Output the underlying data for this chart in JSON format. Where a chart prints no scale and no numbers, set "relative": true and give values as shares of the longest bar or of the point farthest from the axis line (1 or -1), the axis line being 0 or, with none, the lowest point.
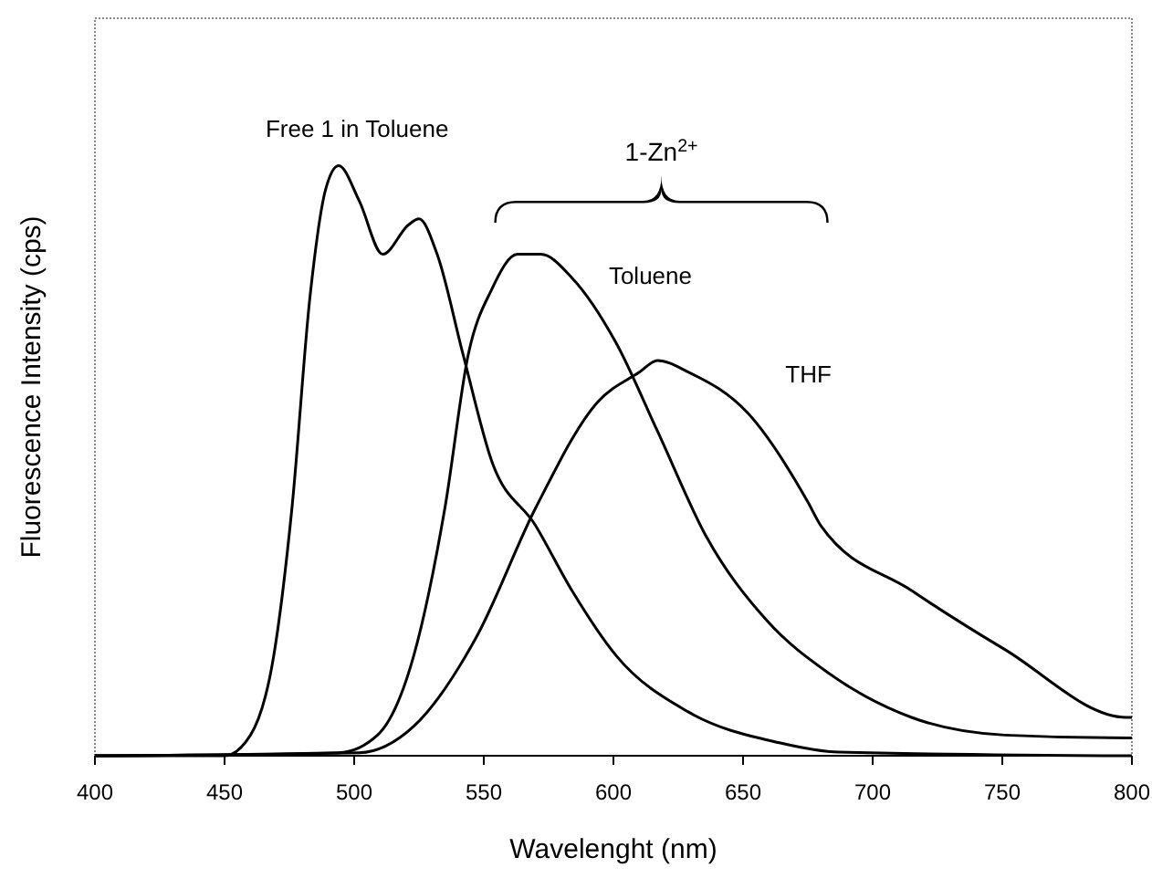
{
  "chart_data": {
    "type": "line",
    "relative": true,
    "xlabel": "Wavelenght (nm)",
    "ylabel": "Fluorescence Intensity (cps)",
    "xlim": [
      400,
      800
    ],
    "xticks": [
      400,
      450,
      500,
      550,
      600,
      650,
      700,
      750,
      800
    ],
    "grid": false,
    "line_style": "solid",
    "annotations": [
      "1-Zn$^{2+}$"
    ],
    "series": [
      {
        "name": "Free 1 in Toluene",
        "color": "#000000",
        "x": [
          400,
          450,
          460,
          469,
          476,
          483,
          489,
          494,
          502,
          511,
          521,
          525,
          532,
          542,
          553,
          570,
          584,
          601,
          629,
          664,
          687,
          800
        ],
        "values": [
          0,
          0,
          0.035,
          0.17,
          0.42,
          0.78,
          0.96,
          1,
          0.94,
          0.85,
          0.9,
          0.91,
          0.85,
          0.68,
          0.5,
          0.39,
          0.28,
          0.17,
          0.074,
          0.022,
          0.006,
          0
        ]
      },
      {
        "name": "Toluene",
        "color": "#000000",
        "x": [
          400,
          494,
          509,
          523,
          535,
          544,
          553,
          563,
          572,
          584,
          601,
          617,
          636,
          659,
          683,
          715,
          751,
          798,
          800
        ],
        "values": [
          0,
          0.005,
          0.035,
          0.17,
          0.42,
          0.68,
          0.79,
          0.85,
          0.85,
          0.81,
          0.7,
          0.55,
          0.37,
          0.23,
          0.14,
          0.065,
          0.035,
          0.03,
          0.03
        ]
      },
      {
        "name": "THF",
        "color": "#000000",
        "x": [
          400,
          502,
          523,
          547,
          570,
          594,
          610,
          617,
          629,
          652,
          675,
          680,
          715,
          751,
          798,
          800
        ],
        "values": [
          0,
          0.005,
          0.05,
          0.2,
          0.42,
          0.6,
          0.65,
          0.67,
          0.65,
          0.58,
          0.43,
          0.39,
          0.28,
          0.18,
          0.065,
          0.065
        ]
      }
    ]
  }
}
